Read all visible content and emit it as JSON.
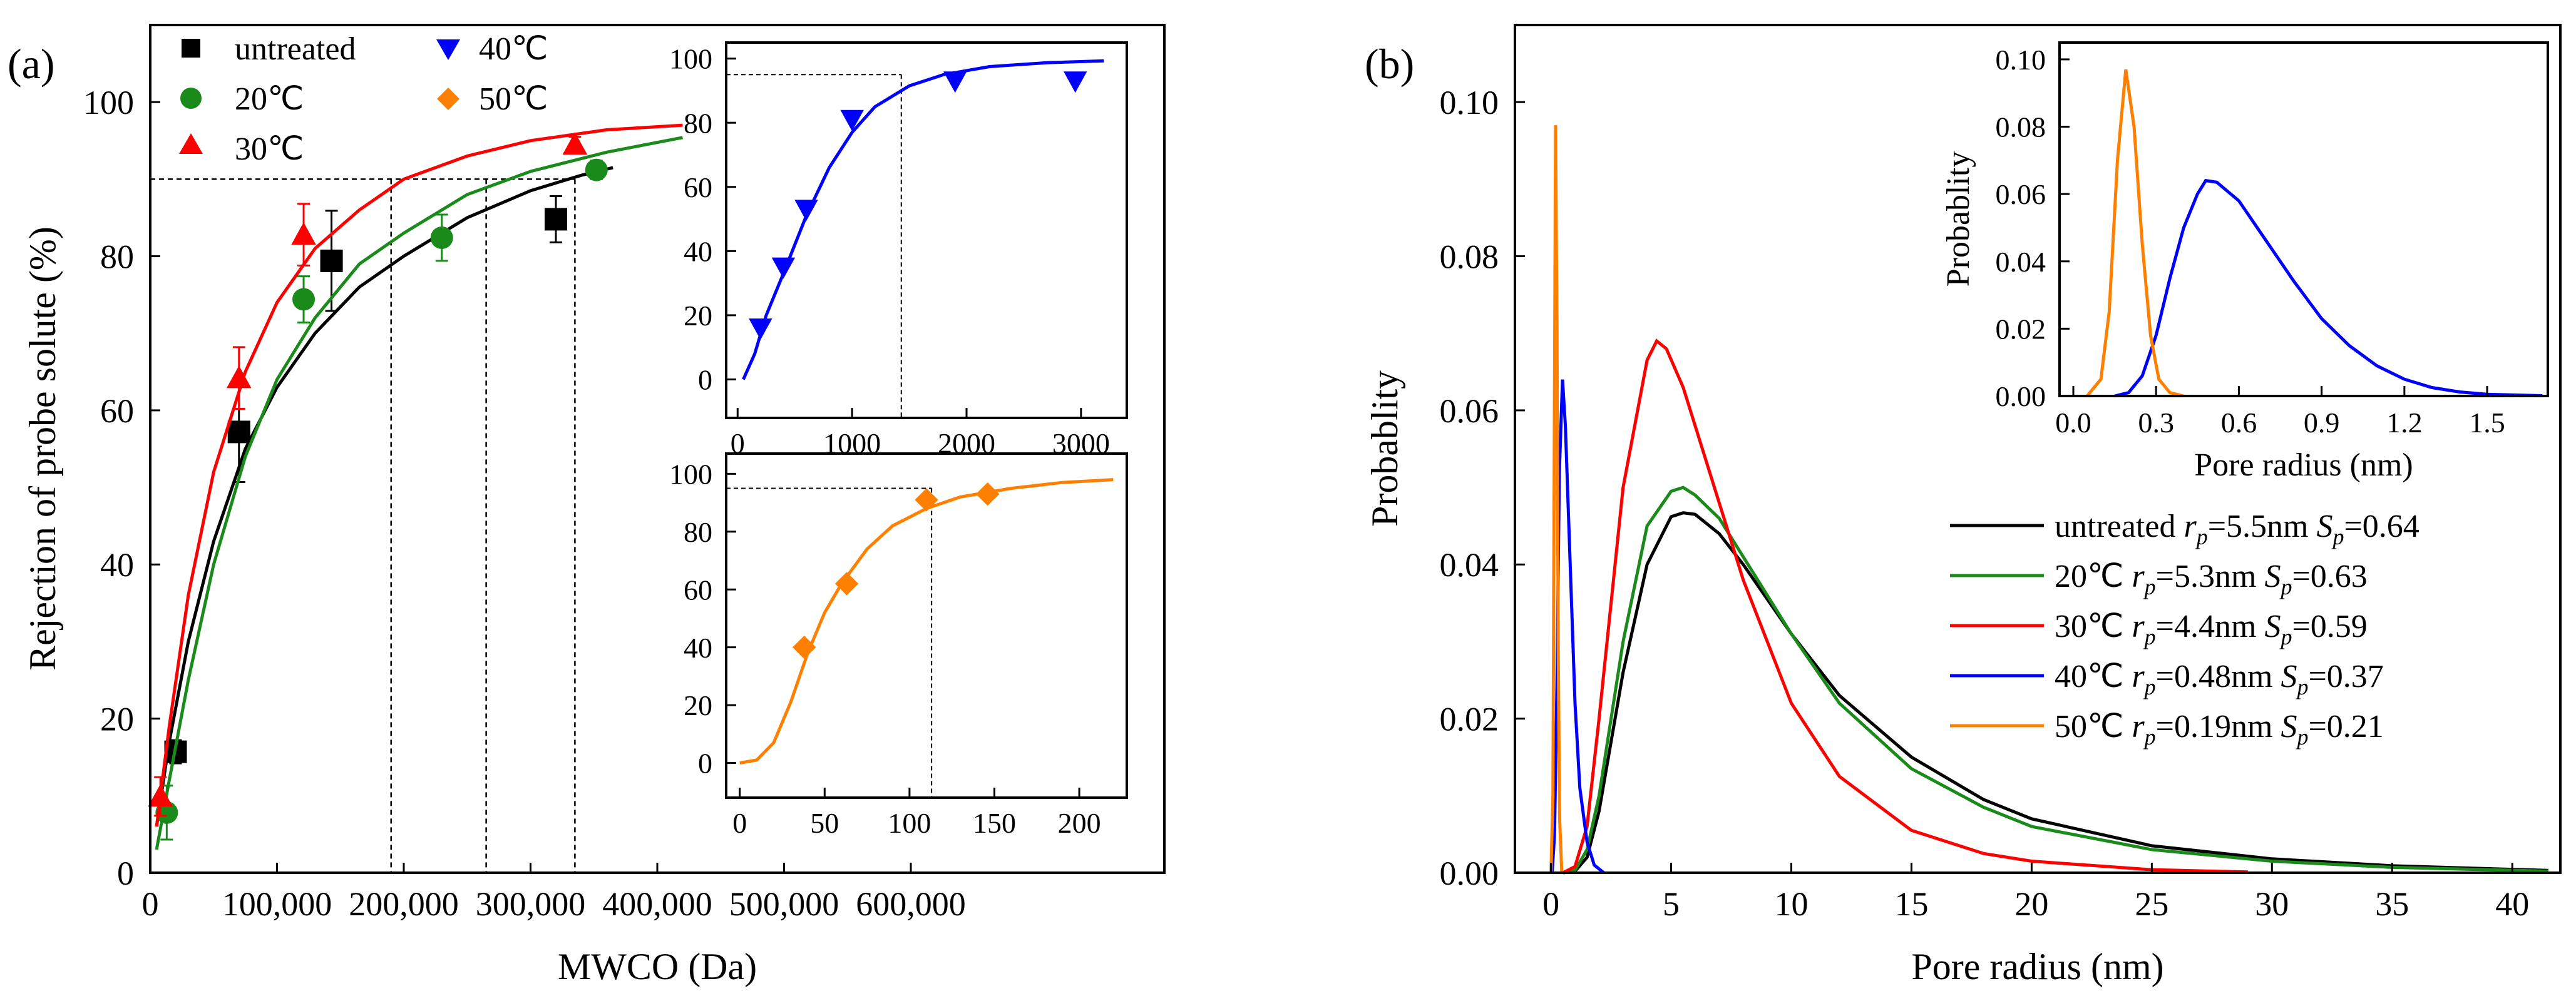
{
  "chart_data": [
    {
      "id": "a",
      "type": "scatter",
      "panel_label": "(a)",
      "xlabel": "MWCO (Da)",
      "ylabel": "Rejection of probe solute (%)",
      "xlim": [
        0,
        800000
      ],
      "ylim": [
        0,
        110
      ],
      "xticks": [
        0,
        100000,
        200000,
        300000,
        400000,
        500000,
        600000
      ],
      "xtick_labels": [
        "0",
        "100,000",
        "200,000",
        "300,000",
        "400,000",
        "500,000",
        "600,000"
      ],
      "yticks": [
        0,
        20,
        40,
        60,
        80,
        100
      ],
      "ytick_labels": [
        "0",
        "20",
        "40",
        "60",
        "80",
        "100"
      ],
      "reference_line_y": 90,
      "reference_line_x": [
        190000,
        265000,
        335000
      ],
      "legend": [
        "untreated",
        "20℃",
        "30℃",
        "40℃",
        "50℃"
      ],
      "series": [
        {
          "name": "untreated",
          "color": "#000000",
          "marker": "square",
          "x": [
            20000,
            70000,
            143000,
            320000
          ],
          "y": [
            15.7,
            57.2,
            79.4,
            84.8
          ],
          "err": [
            1.5,
            6.5,
            6.5,
            3
          ],
          "fit": [
            [
              5000,
              6
            ],
            [
              15000,
              17
            ],
            [
              30000,
              30
            ],
            [
              50000,
              43
            ],
            [
              75000,
              55
            ],
            [
              100000,
              63
            ],
            [
              130000,
              70
            ],
            [
              165000,
              76
            ],
            [
              200000,
              80
            ],
            [
              250000,
              85
            ],
            [
              300000,
              88.5
            ],
            [
              340000,
              90.5
            ],
            [
              365000,
              91.5
            ]
          ]
        },
        {
          "name": "20℃",
          "color": "#1a8a1a",
          "marker": "circle",
          "x": [
            13000,
            121000,
            230000,
            352000
          ],
          "y": [
            7.8,
            74.4,
            82.4,
            91.2
          ],
          "err": [
            3.5,
            3,
            3,
            1.2
          ],
          "fit": [
            [
              5000,
              3
            ],
            [
              15000,
              12
            ],
            [
              30000,
              25
            ],
            [
              50000,
              40
            ],
            [
              75000,
              54
            ],
            [
              100000,
              64
            ],
            [
              130000,
              72
            ],
            [
              165000,
              79
            ],
            [
              200000,
              83
            ],
            [
              250000,
              88
            ],
            [
              300000,
              91
            ],
            [
              360000,
              93.5
            ],
            [
              420000,
              95.4
            ]
          ]
        },
        {
          "name": "30℃",
          "color": "#ff0000",
          "marker": "triangle",
          "x": [
            8000,
            70000,
            121000,
            335000
          ],
          "y": [
            9.9,
            64.2,
            82.8,
            94.5
          ],
          "err": [
            2.5,
            4,
            4,
            1
          ],
          "fit": [
            [
              5000,
              6
            ],
            [
              15000,
              19
            ],
            [
              30000,
              36
            ],
            [
              50000,
              52
            ],
            [
              75000,
              65
            ],
            [
              100000,
              74
            ],
            [
              130000,
              81
            ],
            [
              165000,
              86
            ],
            [
              200000,
              90
            ],
            [
              250000,
              93
            ],
            [
              300000,
              95
            ],
            [
              360000,
              96.4
            ],
            [
              420000,
              97
            ]
          ]
        }
      ]
    },
    {
      "id": "a_inset_40",
      "type": "scatter",
      "xlim": [
        -100,
        3400
      ],
      "ylim": [
        -12,
        105
      ],
      "xticks": [
        0,
        1000,
        2000,
        3000
      ],
      "xtick_labels": [
        "0",
        "1000",
        "2000",
        "3000"
      ],
      "yticks": [
        0,
        20,
        40,
        60,
        80,
        100
      ],
      "ytick_labels": [
        "0",
        "20",
        "40",
        "60",
        "80",
        "100"
      ],
      "reference_line_y": 95,
      "reference_line_x": 1430,
      "series": [
        {
          "name": "40℃",
          "color": "#0000ff",
          "marker": "triangle-down",
          "x": [
            200,
            400,
            600,
            1000,
            1900,
            2950
          ],
          "y": [
            16,
            35,
            53,
            81,
            93,
            93
          ],
          "fit": [
            [
              50,
              0
            ],
            [
              150,
              8
            ],
            [
              250,
              20
            ],
            [
              400,
              33
            ],
            [
              600,
              51
            ],
            [
              800,
              66
            ],
            [
              1000,
              77
            ],
            [
              1200,
              85
            ],
            [
              1500,
              91.5
            ],
            [
              1800,
              95
            ],
            [
              2200,
              97.5
            ],
            [
              2700,
              98.7
            ],
            [
              3200,
              99.3
            ]
          ]
        }
      ]
    },
    {
      "id": "a_inset_50",
      "type": "scatter",
      "xlim": [
        -8,
        228
      ],
      "ylim": [
        -12,
        107
      ],
      "xticks": [
        0,
        50,
        100,
        150,
        200
      ],
      "xtick_labels": [
        "0",
        "50",
        "100",
        "150",
        "200"
      ],
      "yticks": [
        0,
        20,
        40,
        60,
        80,
        100
      ],
      "ytick_labels": [
        "0",
        "20",
        "40",
        "60",
        "80",
        "100"
      ],
      "reference_line_y": 95,
      "reference_line_x": 113,
      "series": [
        {
          "name": "50℃",
          "color": "#ff8000",
          "marker": "diamond",
          "x": [
            38,
            63,
            110,
            146
          ],
          "y": [
            40,
            62,
            91,
            93
          ],
          "fit": [
            [
              0,
              0
            ],
            [
              10,
              1
            ],
            [
              20,
              7
            ],
            [
              30,
              21
            ],
            [
              40,
              38
            ],
            [
              50,
              52
            ],
            [
              60,
              62
            ],
            [
              75,
              74
            ],
            [
              90,
              82
            ],
            [
              110,
              88
            ],
            [
              130,
              92
            ],
            [
              160,
              95
            ],
            [
              190,
              97
            ],
            [
              220,
              98
            ]
          ]
        }
      ]
    },
    {
      "id": "b",
      "type": "line",
      "panel_label": "(b)",
      "xlabel": "Pore radius (nm)",
      "ylabel": "Probablity",
      "xlim": [
        -1.5,
        42
      ],
      "ylim": [
        0,
        0.11
      ],
      "xticks": [
        0,
        5,
        10,
        15,
        20,
        25,
        30,
        35,
        40
      ],
      "xtick_labels": [
        "0",
        "5",
        "10",
        "15",
        "20",
        "25",
        "30",
        "35",
        "40"
      ],
      "yticks": [
        0,
        0.02,
        0.04,
        0.06,
        0.08,
        0.1
      ],
      "ytick_labels": [
        "0.00",
        "0.02",
        "0.04",
        "0.06",
        "0.08",
        "0.10"
      ],
      "legend": [
        {
          "name": "untreated",
          "r_text": "=5.5nm",
          "s_text": "=0.64"
        },
        {
          "name": "20℃",
          "r_text": "=5.3nm",
          "s_text": "=0.63"
        },
        {
          "name": "30℃",
          "r_text": "=4.4nm",
          "s_text": "=0.59"
        },
        {
          "name": "40℃",
          "r_text": "=0.48nm",
          "s_text": "=0.37"
        },
        {
          "name": "50℃",
          "r_text": "=0.19nm",
          "s_text": "=0.21"
        }
      ],
      "series": [
        {
          "name": "untreated",
          "color": "#000000",
          "rp": 5.5,
          "sp": 0.64,
          "curve": [
            [
              0.5,
              0
            ],
            [
              1,
              0.0002
            ],
            [
              1.5,
              0.002
            ],
            [
              2,
              0.008
            ],
            [
              3,
              0.026
            ],
            [
              4,
              0.04
            ],
            [
              5,
              0.0462
            ],
            [
              5.5,
              0.0467
            ],
            [
              6,
              0.0465
            ],
            [
              7,
              0.044
            ],
            [
              8,
              0.04
            ],
            [
              10,
              0.031
            ],
            [
              12,
              0.023
            ],
            [
              15,
              0.015
            ],
            [
              18,
              0.0095
            ],
            [
              20,
              0.007
            ],
            [
              25,
              0.0035
            ],
            [
              30,
              0.0018
            ],
            [
              35,
              0.0009
            ],
            [
              41.5,
              0.0003
            ]
          ]
        },
        {
          "name": "20℃",
          "color": "#1a8a1a",
          "rp": 5.3,
          "sp": 0.63,
          "curve": [
            [
              0.5,
              0
            ],
            [
              1,
              0.0003
            ],
            [
              1.5,
              0.003
            ],
            [
              2,
              0.01
            ],
            [
              3,
              0.03
            ],
            [
              4,
              0.045
            ],
            [
              5,
              0.0495
            ],
            [
              5.5,
              0.05
            ],
            [
              6,
              0.049
            ],
            [
              7,
              0.046
            ],
            [
              8,
              0.041
            ],
            [
              10,
              0.031
            ],
            [
              12,
              0.022
            ],
            [
              15,
              0.0135
            ],
            [
              18,
              0.0085
            ],
            [
              20,
              0.006
            ],
            [
              25,
              0.003
            ],
            [
              30,
              0.0015
            ],
            [
              35,
              0.0007
            ],
            [
              41.5,
              0.0002
            ]
          ]
        },
        {
          "name": "30℃",
          "color": "#ff0000",
          "rp": 4.4,
          "sp": 0.59,
          "curve": [
            [
              0.5,
              0
            ],
            [
              1,
              0.0008
            ],
            [
              1.5,
              0.006
            ],
            [
              2,
              0.02
            ],
            [
              3,
              0.05
            ],
            [
              4,
              0.0665
            ],
            [
              4.4,
              0.069
            ],
            [
              4.8,
              0.068
            ],
            [
              5.5,
              0.063
            ],
            [
              6.5,
              0.053
            ],
            [
              8,
              0.038
            ],
            [
              10,
              0.022
            ],
            [
              12,
              0.0125
            ],
            [
              15,
              0.0055
            ],
            [
              18,
              0.0025
            ],
            [
              20,
              0.0015
            ],
            [
              25,
              0.0004
            ],
            [
              29,
              0.0001
            ]
          ]
        },
        {
          "name": "40℃",
          "color": "#0000ff",
          "rp": 0.48,
          "sp": 0.37,
          "curve": [
            [
              0.05,
              0
            ],
            [
              0.15,
              0.005
            ],
            [
              0.25,
              0.025
            ],
            [
              0.35,
              0.052
            ],
            [
              0.48,
              0.064
            ],
            [
              0.6,
              0.058
            ],
            [
              0.8,
              0.04
            ],
            [
              1,
              0.022
            ],
            [
              1.2,
              0.011
            ],
            [
              1.5,
              0.004
            ],
            [
              1.8,
              0.001
            ],
            [
              2.2,
              0
            ]
          ]
        },
        {
          "name": "50℃",
          "color": "#ff8000",
          "rp": 0.19,
          "sp": 0.21,
          "curve": [
            [
              0.0,
              0
            ],
            [
              0.08,
              0.01
            ],
            [
              0.13,
              0.05
            ],
            [
              0.19,
              0.097
            ],
            [
              0.25,
              0.07
            ],
            [
              0.3,
              0.03
            ],
            [
              0.36,
              0.007
            ],
            [
              0.45,
              0
            ]
          ]
        }
      ]
    },
    {
      "id": "b_inset",
      "type": "line",
      "xlabel": "Pore radius (nm)",
      "ylabel": "Probablity",
      "xlim": [
        -0.05,
        1.72
      ],
      "ylim": [
        0,
        0.105
      ],
      "xticks": [
        0.0,
        0.3,
        0.6,
        0.9,
        1.2,
        1.5
      ],
      "xtick_labels": [
        "0.0",
        "0.3",
        "0.6",
        "0.9",
        "1.2",
        "1.5"
      ],
      "yticks": [
        0,
        0.02,
        0.04,
        0.06,
        0.08,
        0.1
      ],
      "ytick_labels": [
        "0.00",
        "0.02",
        "0.04",
        "0.06",
        "0.08",
        "0.10"
      ],
      "series": [
        {
          "name": "40℃",
          "color": "#0000ff",
          "curve": [
            [
              0.15,
              0
            ],
            [
              0.2,
              0.001
            ],
            [
              0.25,
              0.006
            ],
            [
              0.3,
              0.018
            ],
            [
              0.35,
              0.035
            ],
            [
              0.4,
              0.05
            ],
            [
              0.45,
              0.06
            ],
            [
              0.48,
              0.064
            ],
            [
              0.52,
              0.0635
            ],
            [
              0.6,
              0.058
            ],
            [
              0.7,
              0.046
            ],
            [
              0.8,
              0.034
            ],
            [
              0.9,
              0.023
            ],
            [
              1.0,
              0.015
            ],
            [
              1.1,
              0.009
            ],
            [
              1.2,
              0.005
            ],
            [
              1.3,
              0.0025
            ],
            [
              1.4,
              0.0012
            ],
            [
              1.5,
              0.0005
            ],
            [
              1.7,
              0.0001
            ]
          ]
        },
        {
          "name": "50℃",
          "color": "#ff8000",
          "curve": [
            [
              0.05,
              0
            ],
            [
              0.1,
              0.005
            ],
            [
              0.13,
              0.025
            ],
            [
              0.16,
              0.07
            ],
            [
              0.19,
              0.097
            ],
            [
              0.22,
              0.08
            ],
            [
              0.25,
              0.045
            ],
            [
              0.28,
              0.018
            ],
            [
              0.31,
              0.005
            ],
            [
              0.35,
              0.001
            ],
            [
              0.4,
              0
            ]
          ]
        }
      ]
    }
  ]
}
